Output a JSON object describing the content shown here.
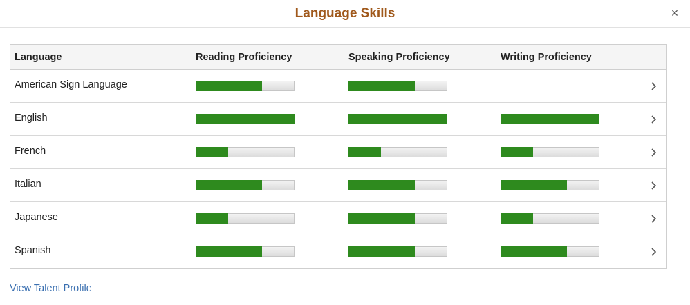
{
  "dialog": {
    "title": "Language Skills",
    "close_glyph": "×"
  },
  "table": {
    "headers": {
      "language": "Language",
      "reading": "Reading Proficiency",
      "speaking": "Speaking Proficiency",
      "writing": "Writing Proficiency"
    },
    "rows": [
      {
        "language": "American Sign Language",
        "reading": 0.67,
        "speaking": 0.67,
        "writing": null
      },
      {
        "language": "English",
        "reading": 1.0,
        "speaking": 1.0,
        "writing": 1.0
      },
      {
        "language": "French",
        "reading": 0.33,
        "speaking": 0.33,
        "writing": 0.33
      },
      {
        "language": "Italian",
        "reading": 0.67,
        "speaking": 0.67,
        "writing": 0.67
      },
      {
        "language": "Japanese",
        "reading": 0.33,
        "speaking": 0.67,
        "writing": 0.33
      },
      {
        "language": "Spanish",
        "reading": 0.67,
        "speaking": 0.67,
        "writing": 0.67
      }
    ],
    "row_action_icon": "chevron-right-icon"
  },
  "footer": {
    "link_label": "View Talent Profile"
  },
  "colors": {
    "title": "#a0591c",
    "bar_fill": "#2e8a1e",
    "link": "#3a6fb0"
  }
}
